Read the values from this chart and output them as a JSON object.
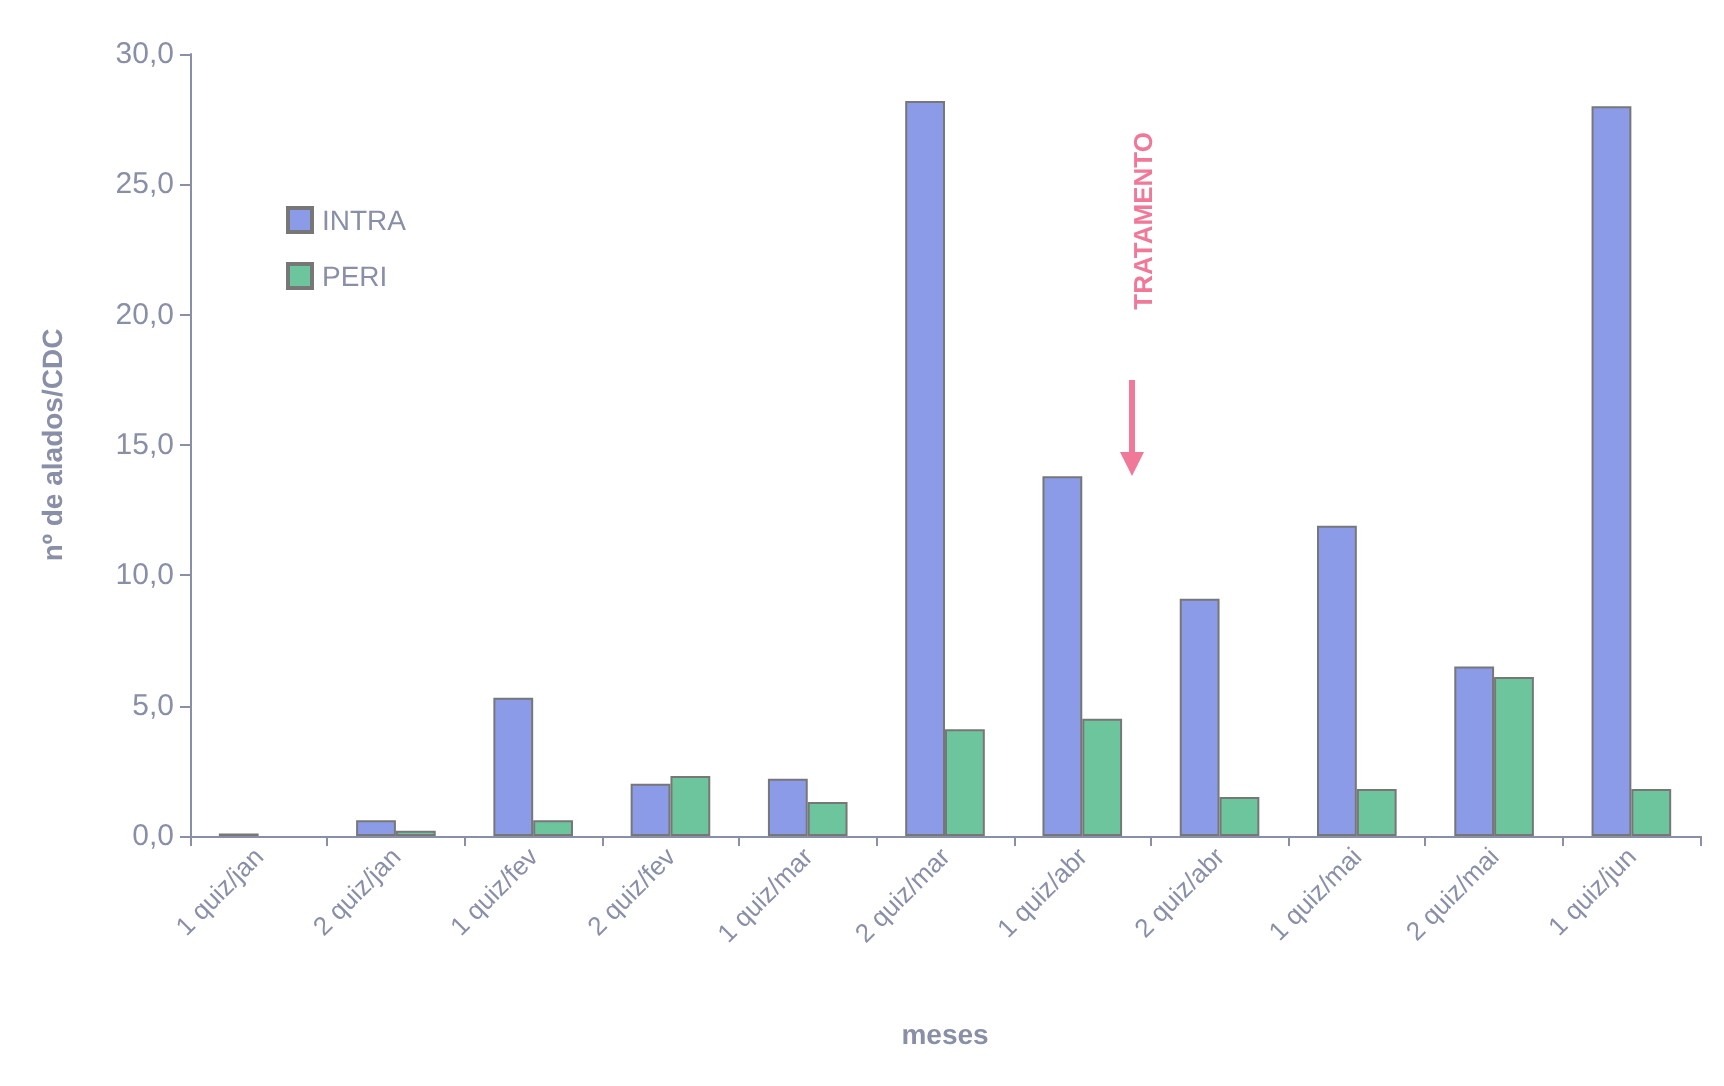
{
  "chart_data": {
    "type": "bar",
    "xlabel": "meses",
    "ylabel": "nº de alados/CDC",
    "categories": [
      "1 quiz/jan",
      "2 quiz/jan",
      "1 quiz/fev",
      "2 quiz/fev",
      "1 quiz/mar",
      "2 quiz/mar",
      "1 quiz/abr",
      "2 quiz/abr",
      "1 quiz/mai",
      "2 quiz/mai",
      "1 quiz/jun"
    ],
    "series": [
      {
        "name": "INTRA",
        "color": "#8c9be8",
        "values": [
          0.1,
          0.6,
          5.3,
          2.0,
          2.2,
          28.2,
          13.8,
          9.1,
          11.9,
          6.5,
          28.0
        ]
      },
      {
        "name": "PERI",
        "color": "#6cc59c",
        "values": [
          0,
          0.2,
          0.6,
          2.3,
          1.3,
          4.1,
          4.5,
          1.5,
          1.8,
          6.1,
          1.8
        ]
      }
    ],
    "ylim": [
      0,
      30
    ],
    "yticks": [
      {
        "value": 0,
        "label": "0,0"
      },
      {
        "value": 5,
        "label": "5,0"
      },
      {
        "value": 10,
        "label": "10,0"
      },
      {
        "value": 15,
        "label": "15,0"
      },
      {
        "value": 20,
        "label": "20,0"
      },
      {
        "value": 25,
        "label": "25,0"
      },
      {
        "value": 30,
        "label": "30,0"
      }
    ],
    "grid": false,
    "legend": "top left",
    "annotations": [
      "TRATAMENTO"
    ]
  }
}
